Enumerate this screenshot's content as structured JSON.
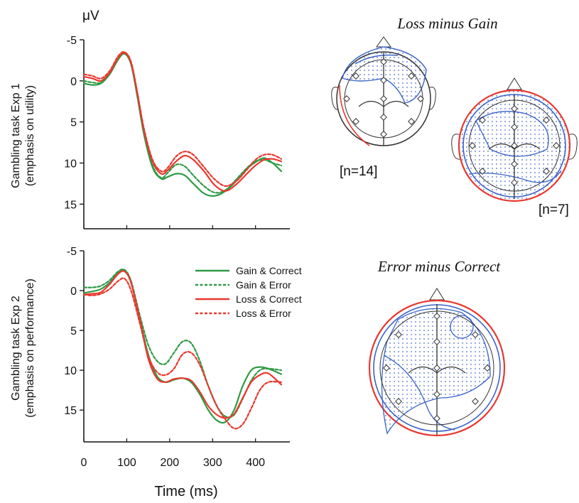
{
  "chart_data": [
    {
      "type": "line",
      "ylabel_line1": "Gambling task Exp 1",
      "ylabel_line2": "(emphasis on utility)",
      "unit": "μV",
      "yinverted": true,
      "ylim": [
        -5,
        18
      ],
      "xlim": [
        0,
        480
      ],
      "yticks": [
        -5,
        0,
        5,
        10,
        15
      ],
      "series": [
        {
          "name": "Gain & Correct",
          "color": "#2e9a45",
          "dash": false,
          "x": [
            0,
            20,
            40,
            60,
            80,
            95,
            110,
            125,
            140,
            160,
            180,
            195,
            215,
            235,
            255,
            280,
            305,
            330,
            355,
            380,
            400,
            420,
            440,
            460
          ],
          "y": [
            0.3,
            0.5,
            0.3,
            -0.8,
            -2.6,
            -3.3,
            -2.0,
            2.0,
            6.5,
            10.5,
            11.9,
            11.7,
            11.3,
            11.5,
            12.5,
            13.7,
            14.0,
            13.4,
            12.2,
            10.7,
            9.9,
            9.4,
            10.0,
            11.0
          ]
        },
        {
          "name": "Gain & Error",
          "color": "#2e9a45",
          "dash": true,
          "x": [
            0,
            20,
            40,
            60,
            80,
            95,
            110,
            125,
            140,
            160,
            180,
            195,
            215,
            235,
            255,
            280,
            305,
            330,
            355,
            380,
            400,
            420,
            440,
            460
          ],
          "y": [
            0.0,
            0.2,
            0.2,
            -0.9,
            -2.7,
            -3.3,
            -2.1,
            1.8,
            6.2,
            10.3,
            11.8,
            11.2,
            10.2,
            10.4,
            11.5,
            12.8,
            13.6,
            13.3,
            12.0,
            10.6,
            9.8,
            9.6,
            10.0,
            10.3
          ]
        },
        {
          "name": "Loss & Correct",
          "color": "#e8392f",
          "dash": false,
          "x": [
            0,
            20,
            40,
            60,
            80,
            95,
            110,
            125,
            140,
            160,
            180,
            195,
            215,
            235,
            255,
            280,
            305,
            330,
            355,
            380,
            400,
            420,
            440,
            460
          ],
          "y": [
            -0.5,
            -0.3,
            0.0,
            -1.0,
            -2.8,
            -3.4,
            -2.2,
            1.6,
            6.0,
            9.8,
            11.3,
            10.9,
            9.8,
            9.1,
            9.6,
            11.0,
            12.7,
            13.4,
            12.6,
            11.3,
            10.3,
            9.6,
            9.5,
            9.8
          ]
        },
        {
          "name": "Loss & Error",
          "color": "#e8392f",
          "dash": true,
          "x": [
            0,
            20,
            40,
            60,
            80,
            95,
            110,
            125,
            140,
            160,
            180,
            195,
            215,
            235,
            255,
            280,
            305,
            330,
            355,
            380,
            400,
            420,
            440,
            460
          ],
          "y": [
            -0.8,
            -0.6,
            -0.3,
            -1.2,
            -3.0,
            -3.5,
            -2.3,
            1.5,
            5.8,
            9.6,
            11.0,
            10.6,
            9.2,
            8.6,
            9.0,
            10.5,
            12.0,
            12.8,
            12.2,
            10.8,
            9.6,
            9.0,
            9.0,
            9.5
          ]
        }
      ]
    },
    {
      "type": "line",
      "ylabel_line1": "Gambling task Exp 2",
      "ylabel_line2": "(emphasis on performance)",
      "yinverted": true,
      "ylim": [
        -5,
        19
      ],
      "xlim": [
        0,
        480
      ],
      "xticks": [
        0,
        100,
        200,
        300,
        400
      ],
      "yticks": [
        -5,
        0,
        5,
        10,
        15
      ],
      "xlabel": "Time (ms)",
      "series": [
        {
          "name": "Gain & Correct",
          "color": "#2e9a45",
          "dash": false,
          "x": [
            0,
            20,
            40,
            60,
            80,
            95,
            110,
            130,
            150,
            170,
            190,
            210,
            230,
            250,
            270,
            290,
            310,
            330,
            350,
            370,
            390,
            410,
            430,
            460
          ],
          "y": [
            0.3,
            0.1,
            -0.2,
            -1.0,
            -2.2,
            -2.5,
            -1.0,
            3.5,
            8.0,
            10.7,
            11.5,
            11.2,
            11.0,
            11.5,
            13.0,
            15.0,
            16.3,
            16.5,
            15.0,
            12.0,
            10.0,
            9.6,
            9.8,
            10.5
          ]
        },
        {
          "name": "Gain & Error",
          "color": "#2e9a45",
          "dash": true,
          "x": [
            0,
            20,
            40,
            60,
            80,
            95,
            110,
            130,
            150,
            170,
            190,
            210,
            230,
            250,
            270,
            290,
            310,
            330,
            350,
            370,
            390,
            410,
            430,
            460
          ],
          "y": [
            -0.4,
            -0.4,
            -0.6,
            -1.3,
            -2.4,
            -2.6,
            -1.2,
            3.0,
            6.8,
            8.8,
            9.2,
            7.8,
            6.4,
            6.6,
            8.8,
            12.0,
            14.5,
            15.8,
            15.6,
            13.6,
            11.3,
            10.0,
            9.8,
            10.0
          ]
        },
        {
          "name": "Loss & Correct",
          "color": "#e8392f",
          "dash": false,
          "x": [
            0,
            20,
            40,
            60,
            80,
            95,
            110,
            130,
            150,
            170,
            190,
            210,
            230,
            250,
            270,
            290,
            310,
            330,
            350,
            370,
            390,
            410,
            430,
            460
          ],
          "y": [
            0.5,
            0.4,
            0.2,
            -0.8,
            -2.1,
            -2.4,
            -1.0,
            3.5,
            8.5,
            11.0,
            11.5,
            11.1,
            11.0,
            11.3,
            12.7,
            14.5,
            15.6,
            16.0,
            15.5,
            13.5,
            11.5,
            10.6,
            10.4,
            11.8
          ]
        },
        {
          "name": "Loss & Error",
          "color": "#e8392f",
          "dash": true,
          "x": [
            0,
            20,
            40,
            60,
            80,
            95,
            110,
            130,
            150,
            170,
            190,
            210,
            230,
            250,
            270,
            290,
            310,
            330,
            350,
            370,
            390,
            410,
            430,
            460
          ],
          "y": [
            0.5,
            0.6,
            0.4,
            -0.2,
            -1.2,
            -1.5,
            0.0,
            4.0,
            8.2,
            10.2,
            10.6,
            9.8,
            8.0,
            7.8,
            9.3,
            12.0,
            14.5,
            16.2,
            17.3,
            16.8,
            14.8,
            12.5,
            11.5,
            11.5
          ]
        }
      ]
    }
  ],
  "legend": [
    {
      "label": "Gain & Correct",
      "color": "#2e9a45",
      "dash": false
    },
    {
      "label": "Gain & Error",
      "color": "#2e9a45",
      "dash": true
    },
    {
      "label": "Loss & Correct",
      "color": "#e8392f",
      "dash": false
    },
    {
      "label": "Loss & Error",
      "color": "#e8392f",
      "dash": true
    }
  ],
  "topomaps": {
    "title_top": "Loss minus Gain",
    "title_bottom": "Error minus Correct",
    "label_n14": "[n=14]",
    "label_n7": "[n=7]"
  },
  "colors": {
    "green": "#2e9a45",
    "red": "#e8392f",
    "blue": "#3a64c8"
  }
}
